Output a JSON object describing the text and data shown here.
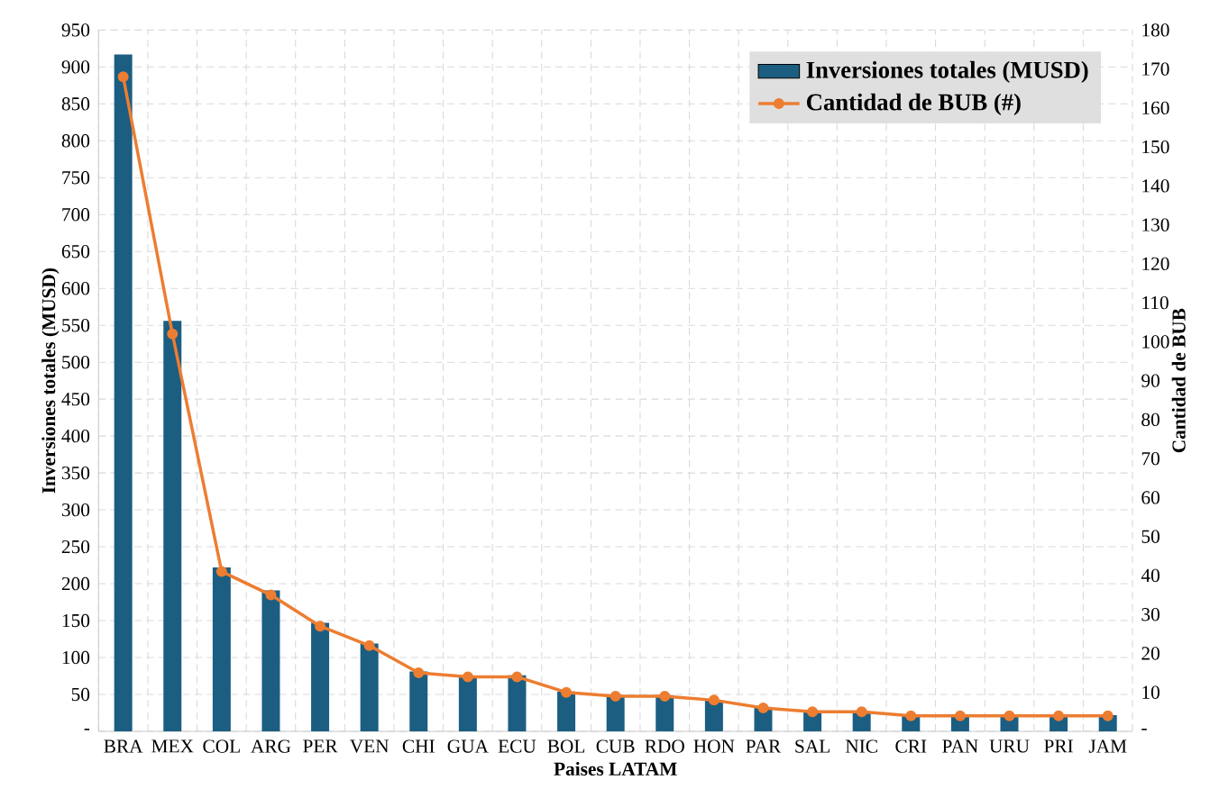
{
  "chart_data": {
    "type": "bar",
    "xlabel": "Paises LATAM",
    "ylabel": "Inversiones totales (MUSD)",
    "y2label": "Cantidad de BUB",
    "categories": [
      "BRA",
      "MEX",
      "COL",
      "ARG",
      "PER",
      "VEN",
      "CHI",
      "GUA",
      "ECU",
      "BOL",
      "CUB",
      "RDO",
      "HON",
      "PAR",
      "SAL",
      "NIC",
      "CRI",
      "PAN",
      "URU",
      "PRI",
      "JAM"
    ],
    "series": [
      {
        "name": "Inversiones totales (MUSD)",
        "color": "#1b5e82",
        "values": [
          917,
          556,
          222,
          191,
          147,
          119,
          81,
          74,
          76,
          54,
          49,
          49,
          42,
          33,
          26,
          26,
          22,
          22,
          22,
          22,
          22
        ]
      },
      {
        "name": "Cantidad de BUB (#)",
        "type": "line",
        "axis": "y2",
        "color": "#ed7d31",
        "marker": "circle",
        "values": [
          168,
          102,
          41,
          35,
          27,
          22,
          15,
          14,
          14,
          10,
          9,
          9,
          8,
          6,
          5,
          5,
          4,
          4,
          4,
          4,
          4
        ]
      }
    ],
    "ylim": [
      0,
      950
    ],
    "yticks": [
      {
        "value": 0,
        "label": "-"
      },
      50,
      100,
      150,
      200,
      250,
      300,
      350,
      400,
      450,
      500,
      550,
      600,
      650,
      700,
      750,
      800,
      850,
      900,
      950
    ],
    "y2lim": [
      0,
      180
    ],
    "y2ticks": [
      {
        "value": 0,
        "label": "-"
      },
      10,
      20,
      30,
      40,
      50,
      60,
      70,
      80,
      90,
      100,
      110,
      120,
      130,
      140,
      150,
      160,
      170,
      180
    ],
    "grid": true,
    "legend": "top right"
  }
}
